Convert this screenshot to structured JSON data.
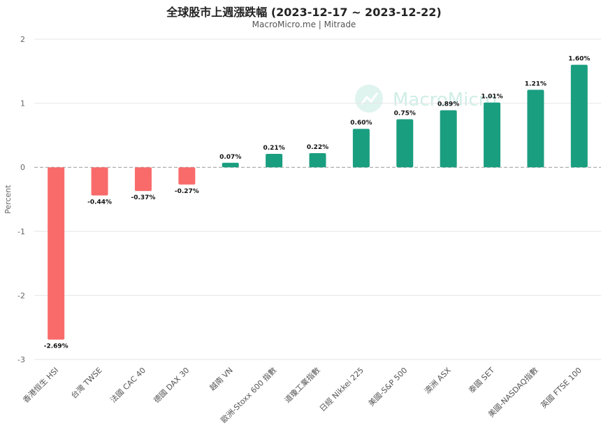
{
  "colors": {
    "positive": "#1a9e80",
    "negative": "#f96b6b",
    "grid": "#e6e6e6",
    "zero_line": "#999999"
  },
  "watermark": "MacroMicro",
  "chart_data": {
    "type": "bar",
    "title": "全球股市上週漲跌幅 (2023-12-17 ~ 2023-12-22)",
    "subtitle": "MacroMicro.me | Mitrade",
    "ylabel": "Percent",
    "ylim": [
      -3,
      2
    ],
    "yticks": [
      "2",
      "1",
      "0",
      "-1",
      "-2",
      "-3"
    ],
    "grid": true,
    "categories": [
      "香港恒生 HSI",
      "台灣 TWSE",
      "法國 CAC 40",
      "德國 DAX 30",
      "越南 VN",
      "歐洲-Stoxx 600 指數",
      "道瓊工業指數",
      "日經 Nikkei 225",
      "美國-S&P 500",
      "澳洲 ASX",
      "泰國 SET",
      "美國-NASDAQ指數",
      "英國 FTSE 100"
    ],
    "values": [
      -2.69,
      -0.44,
      -0.37,
      -0.27,
      0.07,
      0.21,
      0.22,
      0.6,
      0.75,
      0.89,
      1.01,
      1.21,
      1.6
    ],
    "data_labels": [
      "-2.69%",
      "-0.44%",
      "-0.37%",
      "-0.27%",
      "0.07%",
      "0.21%",
      "0.22%",
      "0.60%",
      "0.75%",
      "0.89%",
      "1.01%",
      "1.21%",
      "1.60%"
    ]
  }
}
